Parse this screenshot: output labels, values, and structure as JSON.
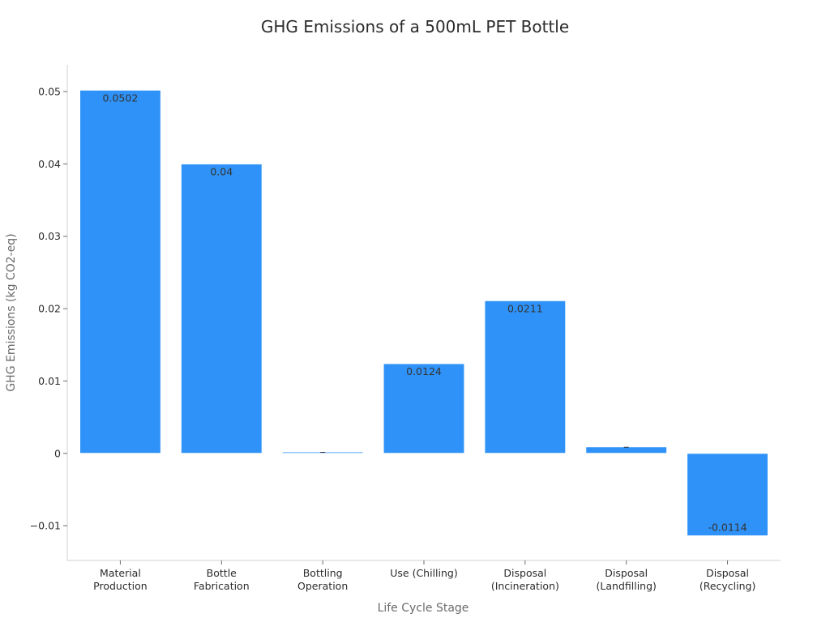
{
  "chart_data": {
    "type": "bar",
    "title": "GHG Emissions of a 500mL PET Bottle",
    "xlabel": "Life Cycle Stage",
    "ylabel": "GHG Emissions (kg CO2-eq)",
    "categories": [
      [
        "Material",
        "Production"
      ],
      [
        "Bottle",
        "Fabrication"
      ],
      [
        "Bottling",
        "Operation"
      ],
      [
        "Use (Chilling)"
      ],
      [
        "Disposal",
        "(Incineration)"
      ],
      [
        "Disposal",
        "(Landfilling)"
      ],
      [
        "Disposal",
        "(Recycling)"
      ]
    ],
    "values": [
      0.0502,
      0.04,
      0.0002,
      0.0124,
      0.0211,
      0.0009,
      -0.0114
    ],
    "data_labels": [
      "0.0502",
      "0.04",
      "",
      "0.0124",
      "0.0211",
      "",
      "-0.0114"
    ],
    "ylim": [
      -0.0148,
      0.0537
    ],
    "yticks": [
      -0.01,
      0,
      0.01,
      0.02,
      0.03,
      0.04,
      0.05
    ],
    "ytick_labels": [
      "−0.01",
      "0",
      "0.01",
      "0.02",
      "0.03",
      "0.04",
      "0.05"
    ],
    "grid": false,
    "bar_color": "#2f92f8"
  }
}
